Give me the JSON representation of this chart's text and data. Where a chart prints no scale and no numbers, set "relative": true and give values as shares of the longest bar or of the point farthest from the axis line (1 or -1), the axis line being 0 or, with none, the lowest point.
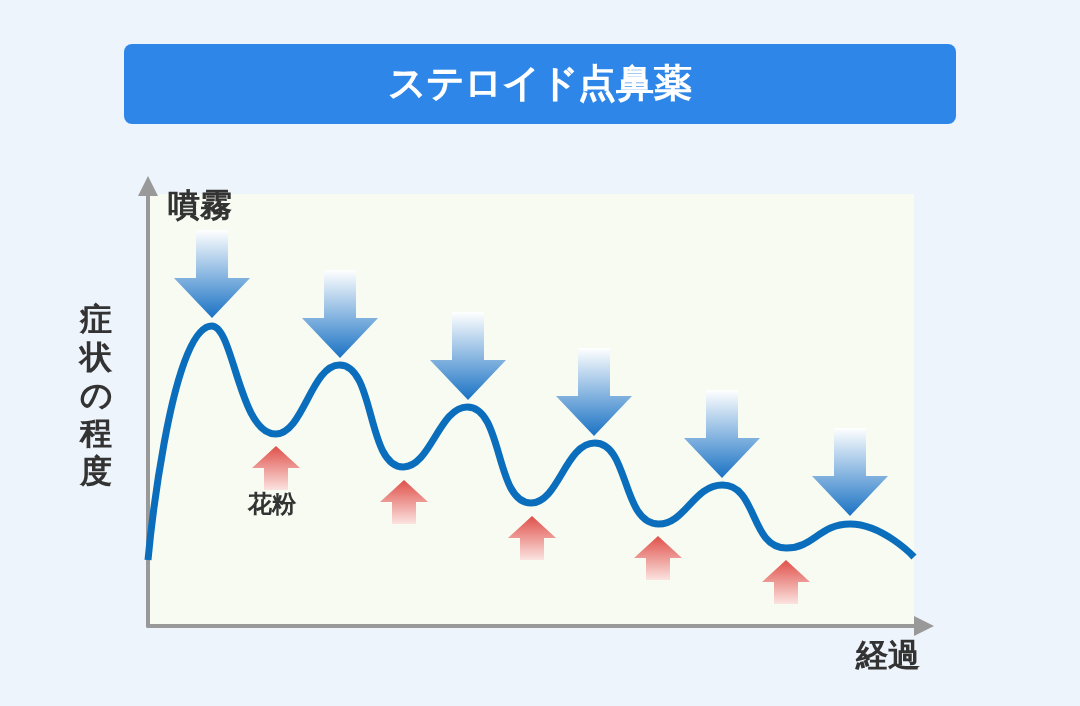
{
  "chart_data": {
    "type": "line",
    "title": "ステロイド点鼻薬",
    "xlabel": "経過",
    "ylabel": "症状の程度",
    "relative": true,
    "categories": [
      null,
      null,
      null,
      null,
      null,
      null,
      null,
      null,
      null,
      null,
      null,
      null,
      null
    ],
    "values": [
      0.22,
      1,
      0.64,
      0.87,
      0.53,
      0.73,
      0.41,
      0.61,
      0.34,
      0.47,
      0.26,
      0.34,
      0.23
    ],
    "color": "#0a6ebd",
    "annotations": [
      "噴霧",
      "花粉"
    ],
    "grid": false,
    "marker": "none"
  }
}
